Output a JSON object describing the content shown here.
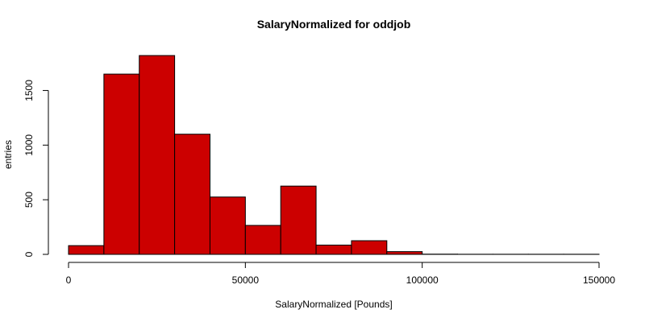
{
  "chart_data": {
    "type": "bar",
    "title": "SalaryNormalized for oddjob",
    "xlabel": "SalaryNormalized [Pounds]",
    "ylabel": "entries",
    "bin_edges": [
      0,
      10000,
      20000,
      30000,
      40000,
      50000,
      60000,
      70000,
      80000,
      90000,
      100000,
      110000,
      120000,
      130000,
      140000,
      150000
    ],
    "values": [
      80,
      1650,
      1820,
      1100,
      525,
      265,
      625,
      85,
      125,
      25,
      2,
      1,
      1,
      1,
      1
    ],
    "xlim": [
      0,
      150000
    ],
    "ylim": [
      0,
      1820
    ],
    "x_ticks": [
      0,
      50000,
      100000,
      150000
    ],
    "x_tick_labels": [
      "0",
      "50000",
      "100000",
      "150000"
    ],
    "y_ticks": [
      0,
      500,
      1000,
      1500
    ],
    "y_tick_labels": [
      "0",
      "500",
      "1000",
      "1500"
    ],
    "grid": false,
    "colors": {
      "bar_fill": "#cc0000",
      "bar_stroke": "#000000"
    }
  }
}
